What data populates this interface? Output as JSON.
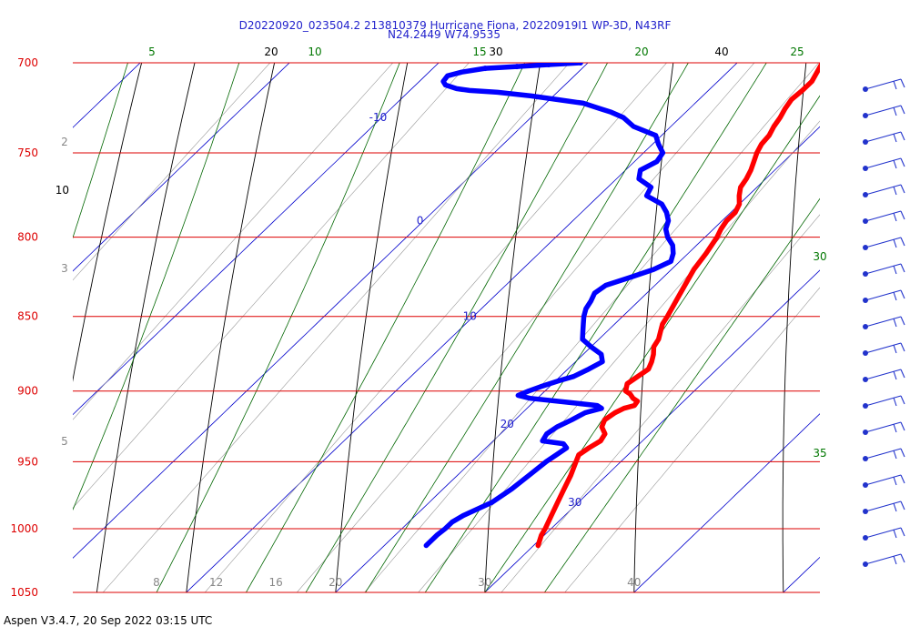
{
  "header": {
    "title_line1": "D20220920_023504.2 213810379 Hurricane Fiona, 20220919I1 WP-3D, N43RF",
    "title_line2": "N24.2449 W74.9535"
  },
  "footer": {
    "text": "Aspen V3.4.7, 20 Sep 2022  03:15 UTC"
  },
  "colors": {
    "isobar": "#dd0000",
    "temperature": "#ff0000",
    "dewpoint": "#0000ff",
    "isotherm": "#0000cc",
    "dry_adiabat": "#000000",
    "moist_adiabat": "#006600",
    "mixing_ratio": "#999999",
    "wind_barb": "#2233cc"
  },
  "chart_data": {
    "type": "skew-t",
    "pressure_axis": {
      "unit": "hPa",
      "scale": "log",
      "range": [
        1050,
        700
      ],
      "ticks": [
        700,
        750,
        800,
        850,
        900,
        950,
        1000,
        1050
      ]
    },
    "temperature_axis": {
      "unit": "C",
      "skewed": true,
      "ticks": [
        8,
        12,
        16,
        20,
        30,
        40
      ]
    },
    "isotherm_labels": [
      -10,
      0,
      10,
      20,
      30
    ],
    "dry_adiabat_labels": [
      10,
      20,
      30,
      40
    ],
    "moist_adiabat_labels": [
      5,
      10,
      15,
      20,
      25,
      30,
      35
    ],
    "mixing_ratio_labels": [
      2,
      3,
      5
    ],
    "series": [
      {
        "key": "temperature",
        "points": [
          [
            1013,
            30.3
          ],
          [
            1005,
            29.8
          ],
          [
            1000,
            29.6
          ],
          [
            990,
            29.1
          ],
          [
            980,
            28.6
          ],
          [
            970,
            28.1
          ],
          [
            960,
            27.6
          ],
          [
            950,
            27.0
          ],
          [
            945,
            26.7
          ],
          [
            940,
            26.9
          ],
          [
            935,
            27.2
          ],
          [
            930,
            27.0
          ],
          [
            925,
            26.3
          ],
          [
            920,
            26.0
          ],
          [
            915,
            26.2
          ],
          [
            912,
            26.5
          ],
          [
            910,
            27.0
          ],
          [
            907,
            26.9
          ],
          [
            905,
            26.4
          ],
          [
            902,
            25.9
          ],
          [
            900,
            25.4
          ],
          [
            895,
            25.0
          ],
          [
            890,
            25.2
          ],
          [
            885,
            25.4
          ],
          [
            880,
            25.1
          ],
          [
            875,
            24.7
          ],
          [
            870,
            24.2
          ],
          [
            865,
            24.0
          ],
          [
            860,
            23.6
          ],
          [
            855,
            23.2
          ],
          [
            850,
            23.0
          ],
          [
            840,
            22.5
          ],
          [
            830,
            22.0
          ],
          [
            820,
            21.5
          ],
          [
            810,
            21.2
          ],
          [
            800,
            20.8
          ],
          [
            795,
            20.5
          ],
          [
            790,
            20.3
          ],
          [
            785,
            20.3
          ],
          [
            780,
            20.0
          ],
          [
            775,
            19.4
          ],
          [
            770,
            18.9
          ],
          [
            765,
            18.7
          ],
          [
            760,
            18.4
          ],
          [
            755,
            18.0
          ],
          [
            750,
            17.6
          ],
          [
            745,
            17.3
          ],
          [
            740,
            17.2
          ],
          [
            735,
            16.9
          ],
          [
            730,
            16.7
          ],
          [
            725,
            16.4
          ],
          [
            720,
            16.2
          ],
          [
            715,
            16.3
          ],
          [
            710,
            16.3
          ],
          [
            705,
            16.0
          ],
          [
            700,
            15.7
          ]
        ]
      },
      {
        "key": "dewpoint",
        "points": [
          [
            1013,
            22.8
          ],
          [
            1005,
            22.8
          ],
          [
            1000,
            22.9
          ],
          [
            995,
            22.9
          ],
          [
            990,
            23.2
          ],
          [
            980,
            24.2
          ],
          [
            970,
            24.6
          ],
          [
            960,
            24.8
          ],
          [
            950,
            25.0
          ],
          [
            945,
            25.2
          ],
          [
            940,
            25.4
          ],
          [
            937,
            24.9
          ],
          [
            935,
            23.3
          ],
          [
            930,
            23.1
          ],
          [
            925,
            23.3
          ],
          [
            920,
            23.8
          ],
          [
            915,
            24.2
          ],
          [
            912,
            25.0
          ],
          [
            910,
            24.5
          ],
          [
            908,
            22.5
          ],
          [
            905,
            19.5
          ],
          [
            903,
            18.5
          ],
          [
            900,
            18.9
          ],
          [
            897,
            19.4
          ],
          [
            893,
            20.2
          ],
          [
            890,
            20.9
          ],
          [
            885,
            21.4
          ],
          [
            880,
            21.8
          ],
          [
            875,
            21.2
          ],
          [
            870,
            20.0
          ],
          [
            865,
            18.9
          ],
          [
            860,
            18.4
          ],
          [
            855,
            17.9
          ],
          [
            850,
            17.4
          ],
          [
            845,
            17.0
          ],
          [
            840,
            16.8
          ],
          [
            835,
            16.5
          ],
          [
            830,
            16.7
          ],
          [
            825,
            17.8
          ],
          [
            820,
            18.8
          ],
          [
            815,
            19.4
          ],
          [
            810,
            19.0
          ],
          [
            805,
            18.4
          ],
          [
            800,
            17.5
          ],
          [
            795,
            16.8
          ],
          [
            790,
            16.4
          ],
          [
            785,
            15.7
          ],
          [
            780,
            14.8
          ],
          [
            775,
            13.2
          ],
          [
            770,
            12.9
          ],
          [
            765,
            11.5
          ],
          [
            760,
            11.0
          ],
          [
            755,
            11.5
          ],
          [
            750,
            11.3
          ],
          [
            745,
            10.4
          ],
          [
            740,
            9.6
          ],
          [
            735,
            7.5
          ],
          [
            730,
            6.2
          ],
          [
            727,
            5.0
          ],
          [
            725,
            4.0
          ],
          [
            722,
            2.5
          ],
          [
            720,
            0.5
          ],
          [
            718,
            -1.5
          ],
          [
            716,
            -4.0
          ],
          [
            715,
            -6.0
          ],
          [
            714,
            -7.0
          ],
          [
            712,
            -8.0
          ],
          [
            710,
            -8.4
          ],
          [
            707,
            -8.5
          ],
          [
            705,
            -7.8
          ],
          [
            703,
            -6.5
          ],
          [
            702,
            -4.5
          ],
          [
            701,
            -2.5
          ],
          [
            700,
            -0.5
          ]
        ]
      }
    ],
    "wind_barbs": {
      "count": 19,
      "note": "wind barbs along right edge"
    }
  }
}
